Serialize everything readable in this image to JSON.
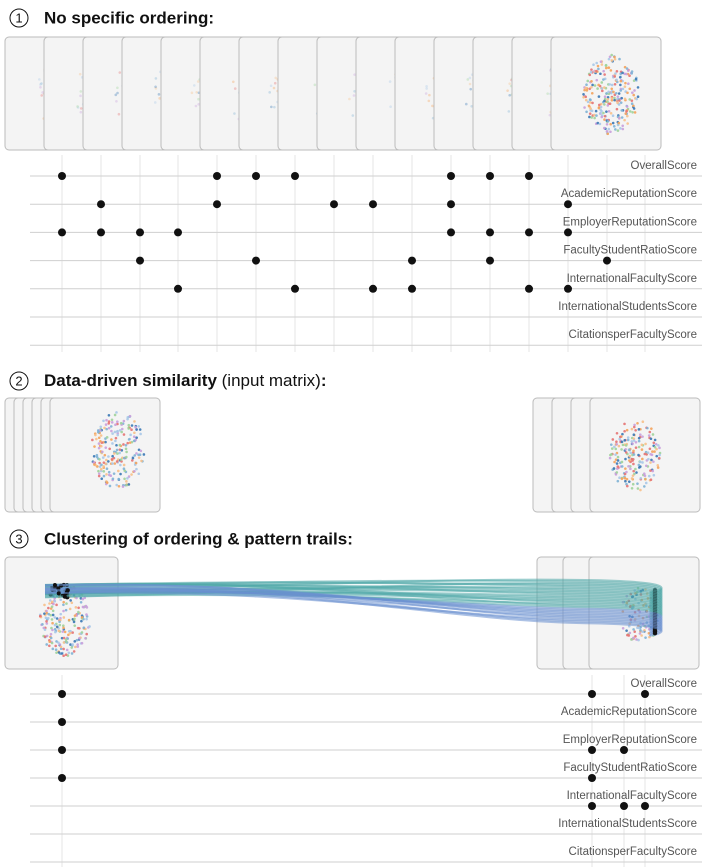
{
  "sections": [
    {
      "number": "1",
      "title": "No specific ordering:",
      "attributes": [
        "OverallScore",
        "AcademicReputationScore",
        "EmployerReputationScore",
        "FacultyStudentRatioScore",
        "InternationalFacultyScore",
        "InternationalStudentsScore",
        "CitationsperFacultyScore"
      ]
    },
    {
      "number": "2",
      "title": "Data-driven similarity",
      "subtitle": "(input matrix)",
      "colon": ":"
    },
    {
      "number": "3",
      "title": "Clustering of ordering & pattern trails:",
      "attributes": [
        "OverallScore",
        "AcademicReputationScore",
        "EmployerReputationScore",
        "FacultyStudentRatioScore",
        "InternationalFacultyScore",
        "InternationalStudentsScore",
        "CitationsperFacultyScore"
      ]
    }
  ]
}
